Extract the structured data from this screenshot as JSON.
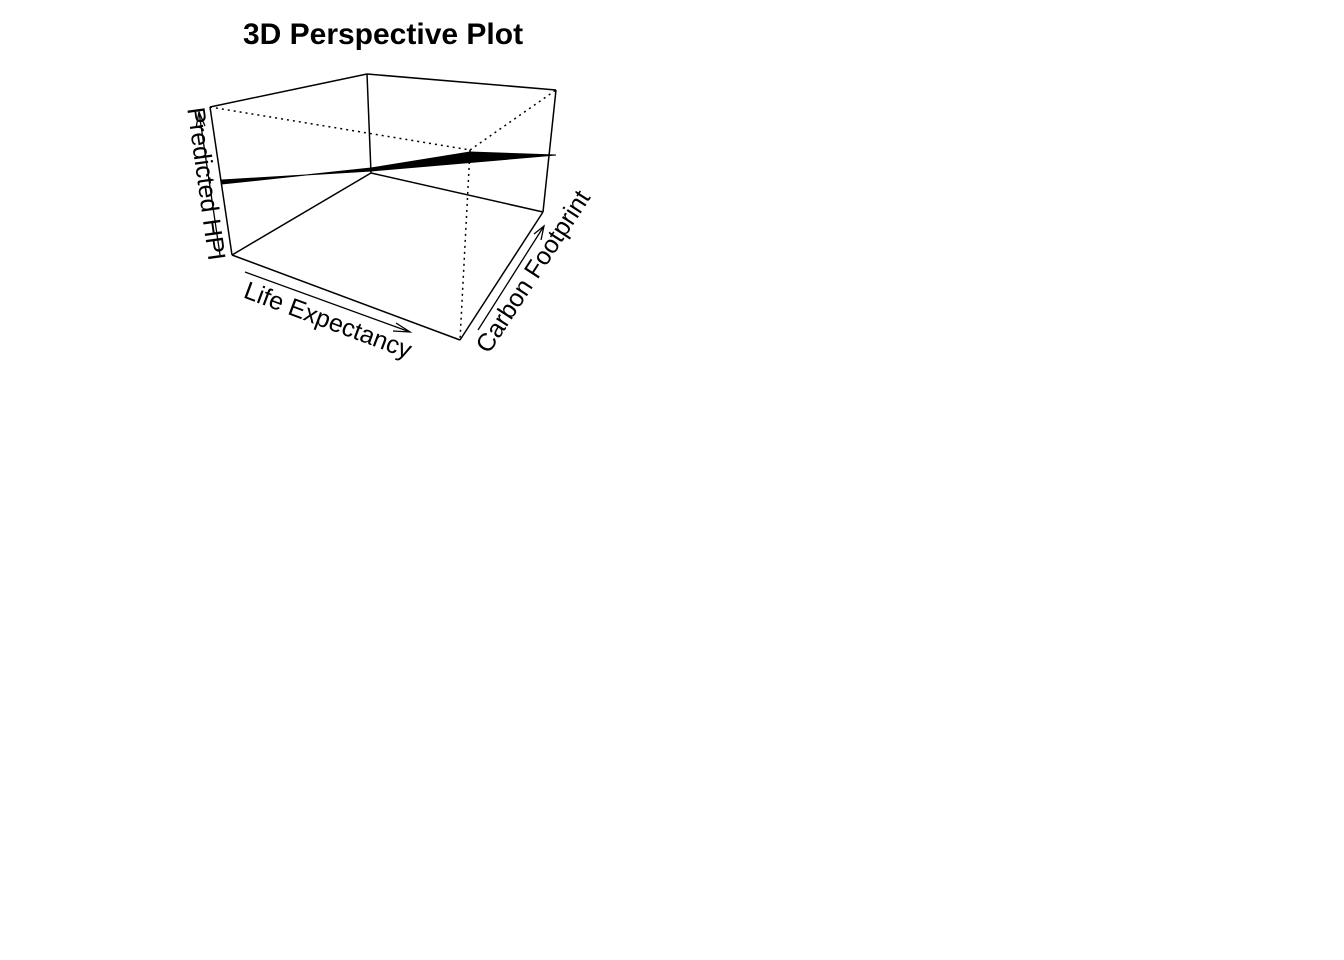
{
  "chart_data": {
    "type": "surface",
    "title": "3D Perspective Plot",
    "xlabel": "Life Expectancy",
    "ylabel": "Carbon Footprint",
    "zlabel": "Predicted HPI",
    "ticks": false,
    "box": true,
    "surface": {
      "shape": "plane",
      "note_z_levels_at_corners_fraction": {
        "x_low_y_low": 0.45,
        "x_high_y_low": 0.4,
        "x_low_y_high": 0.6,
        "x_high_y_high": 0.55
      }
    }
  }
}
